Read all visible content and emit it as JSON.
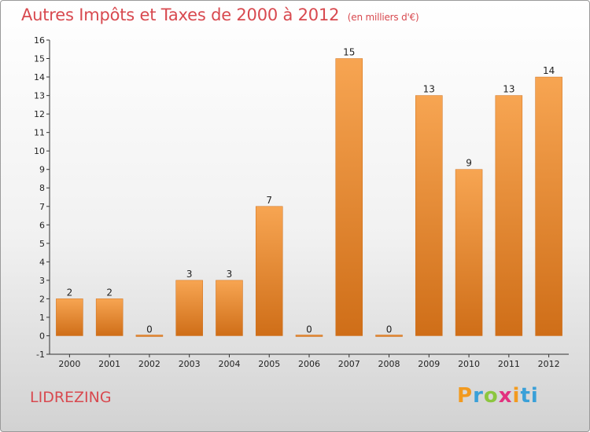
{
  "header": {
    "title": "Autres Impôts et Taxes de 2000 à 2012",
    "unit": "(en milliers d'€)"
  },
  "footer": {
    "place": "LIDREZING",
    "logo_letters": [
      "P",
      "r",
      "o",
      "x",
      "i",
      "ti"
    ]
  },
  "colors": {
    "title": "#d8494f",
    "bar_light": "#f7a552",
    "bar_dark": "#cf6e18"
  },
  "chart_data": {
    "type": "bar",
    "categories": [
      "2000",
      "2001",
      "2002",
      "2003",
      "2004",
      "2005",
      "2006",
      "2007",
      "2008",
      "2009",
      "2010",
      "2011",
      "2012"
    ],
    "values": [
      2,
      2,
      0,
      3,
      3,
      7,
      0,
      15,
      0,
      13,
      9,
      13,
      14
    ],
    "data_labels": [
      "2",
      "2",
      "0",
      "3",
      "3",
      "7",
      "0",
      "15",
      "0",
      "13",
      "9",
      "13",
      "14"
    ],
    "ylim": [
      -1,
      16
    ],
    "yticks": [
      "-1",
      "0",
      "1",
      "2",
      "3",
      "4",
      "5",
      "6",
      "7",
      "8",
      "9",
      "10",
      "11",
      "12",
      "13",
      "14",
      "15",
      "16"
    ],
    "grid": false
  }
}
